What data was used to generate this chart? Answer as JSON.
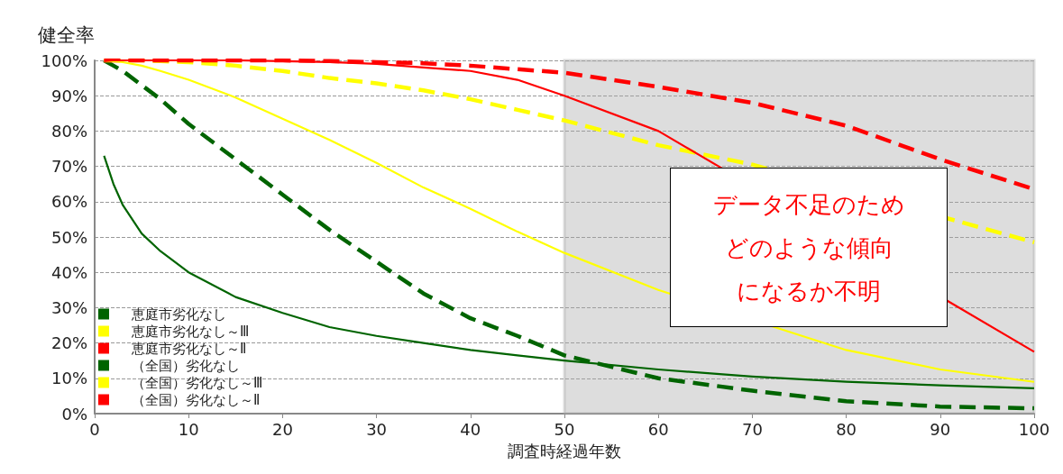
{
  "chart_data": {
    "type": "line",
    "xlabel": "調査時経過年数",
    "ylabel": "健全率",
    "x": [
      1,
      2,
      3,
      5,
      7,
      10,
      15,
      20,
      25,
      30,
      35,
      40,
      45,
      50,
      60,
      70,
      80,
      90,
      100
    ],
    "series": [
      {
        "name": "恵庭市劣化なし",
        "color": "#006400",
        "line_style": "dashed",
        "values": [
          100,
          98.5,
          97,
          93,
          89,
          82,
          72,
          62,
          52,
          43,
          34,
          27,
          22,
          16.5,
          10,
          6.5,
          3.5,
          2,
          1.5
        ]
      },
      {
        "name": "恵庭市劣化なし～Ⅲ",
        "color": "#ffff00",
        "line_style": "dashed",
        "values": [
          100,
          100,
          100,
          100,
          99.8,
          99.5,
          98.5,
          97,
          95,
          93.5,
          91.5,
          89,
          86,
          83,
          76,
          70.5,
          null,
          null,
          48.5
        ]
      },
      {
        "name": "恵庭市劣化なし～Ⅱ",
        "color": "#ff0000",
        "line_style": "dashed",
        "values": [
          100,
          100,
          100,
          100,
          100,
          100,
          100,
          100,
          99.8,
          99.5,
          99.2,
          98.5,
          97.5,
          96.5,
          92.5,
          88,
          81.5,
          72,
          63.5
        ]
      },
      {
        "name": "（全国）劣化なし",
        "color": "#006400",
        "line_style": "solid",
        "values": [
          73,
          65,
          59,
          51,
          46,
          40,
          33,
          28.5,
          24.5,
          22,
          20,
          18,
          16.5,
          15,
          12.5,
          10.5,
          9,
          8,
          7.2
        ]
      },
      {
        "name": "（全国）劣化なし～Ⅲ",
        "color": "#ffff00",
        "line_style": "solid",
        "values": [
          100,
          99.8,
          99.5,
          98.5,
          97,
          94.5,
          89.5,
          83.5,
          77.5,
          71,
          64,
          58,
          51.5,
          45.5,
          35,
          null,
          18,
          12.5,
          9
        ]
      },
      {
        "name": "（全国）劣化なし～Ⅱ",
        "color": "#ff0000",
        "line_style": "solid",
        "values": [
          100,
          100,
          100,
          100,
          100,
          100,
          100,
          99.8,
          99.5,
          99,
          98,
          97,
          94.5,
          90,
          80,
          null,
          null,
          null,
          17.5
        ]
      }
    ],
    "xlim": [
      0,
      100
    ],
    "xticks": [
      0,
      10,
      20,
      30,
      40,
      50,
      60,
      70,
      80,
      90,
      100
    ],
    "ylim": [
      0,
      100
    ],
    "yticks": [
      {
        "value": 0,
        "label": "0%"
      },
      {
        "value": 10,
        "label": "10%"
      },
      {
        "value": 20,
        "label": "20%"
      },
      {
        "value": 30,
        "label": "30%"
      },
      {
        "value": 40,
        "label": "40%"
      },
      {
        "value": 50,
        "label": "50%"
      },
      {
        "value": 60,
        "label": "60%"
      },
      {
        "value": 70,
        "label": "70%"
      },
      {
        "value": 80,
        "label": "80%"
      },
      {
        "value": 90,
        "label": "90%"
      },
      {
        "value": 100,
        "label": "100%"
      }
    ],
    "bands": [
      {
        "axis": "x",
        "from": 50,
        "to": 100,
        "color": "#a6a6a6"
      }
    ],
    "annotations": [
      "データ不足のため",
      "どのような傾向",
      "になるか不明"
    ],
    "grid": "y",
    "legend": "bottom left",
    "marker": "none"
  }
}
